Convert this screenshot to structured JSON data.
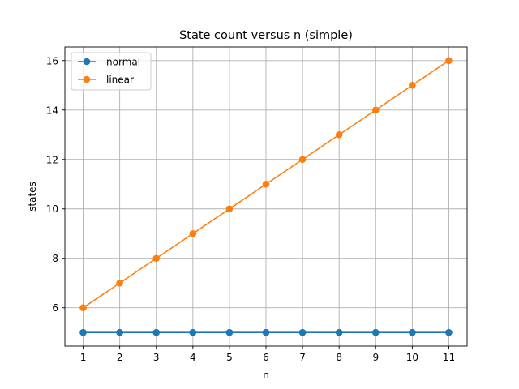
{
  "chart_data": {
    "type": "line",
    "title": "State count versus n (simple)",
    "xlabel": "n",
    "ylabel": "states",
    "x": [
      1,
      2,
      3,
      4,
      5,
      6,
      7,
      8,
      9,
      10,
      11
    ],
    "xticks": [
      "1",
      "2",
      "3",
      "4",
      "5",
      "6",
      "7",
      "8",
      "9",
      "10",
      "11"
    ],
    "yticks": [
      "6",
      "8",
      "10",
      "12",
      "14",
      "16"
    ],
    "xlim": [
      0.5,
      11.5
    ],
    "ylim": [
      4.45,
      16.55
    ],
    "grid": true,
    "legend_position": "top-left",
    "series": [
      {
        "name": "normal",
        "color": "#1f77b4",
        "marker": "circle",
        "values": [
          5,
          5,
          5,
          5,
          5,
          5,
          5,
          5,
          5,
          5,
          5
        ]
      },
      {
        "name": "linear",
        "color": "#ff7f0e",
        "marker": "circle",
        "values": [
          6,
          7,
          8,
          9,
          10,
          11,
          12,
          13,
          14,
          15,
          16
        ]
      }
    ]
  }
}
